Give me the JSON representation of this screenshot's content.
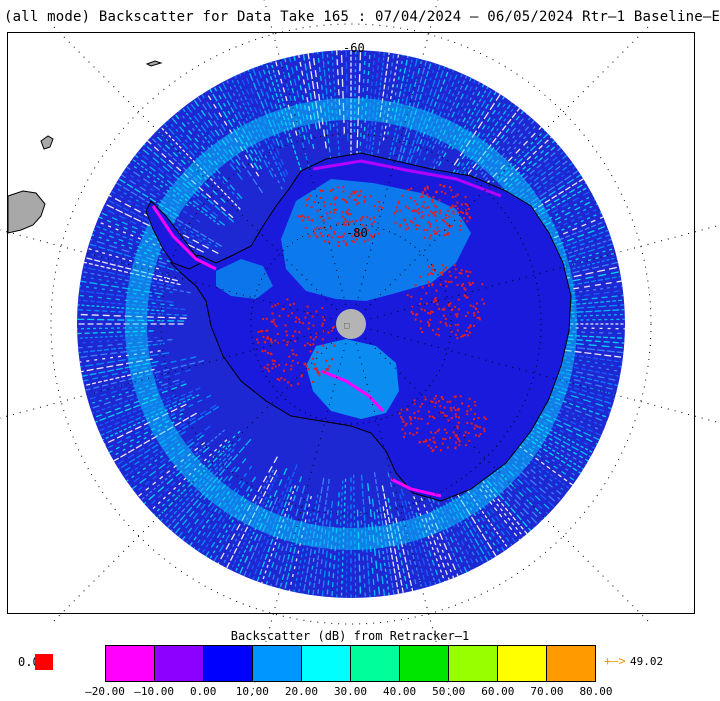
{
  "title": "(all mode) Backscatter for Data Take 165 : 07/04/2024 – 06/05/2024 Rtr–1 Baseline–E",
  "map": {
    "projection": "south-polar-stereographic",
    "latitude_labels": [
      "-60",
      "-80"
    ],
    "pole_marker": "no-data-pole-hole"
  },
  "colorbar": {
    "title": "Backscatter (dB) from Retracker–1",
    "colors": [
      "#ff00ff",
      "#8c00ff",
      "#0000ff",
      "#0096ff",
      "#00ffff",
      "#00ff9b",
      "#00e600",
      "#96ff00",
      "#ffff00",
      "#ff9b00"
    ],
    "tick_labels": [
      "–20.00",
      "–10.00",
      "0.00",
      "10.00",
      "20.00",
      "30.00",
      "40.00",
      "50.00",
      "60.00",
      "70.00",
      "80.00"
    ],
    "under_label": "0.0",
    "under_color": "#ff0000",
    "over_arrow": "+–>",
    "over_value": "49.02"
  }
}
